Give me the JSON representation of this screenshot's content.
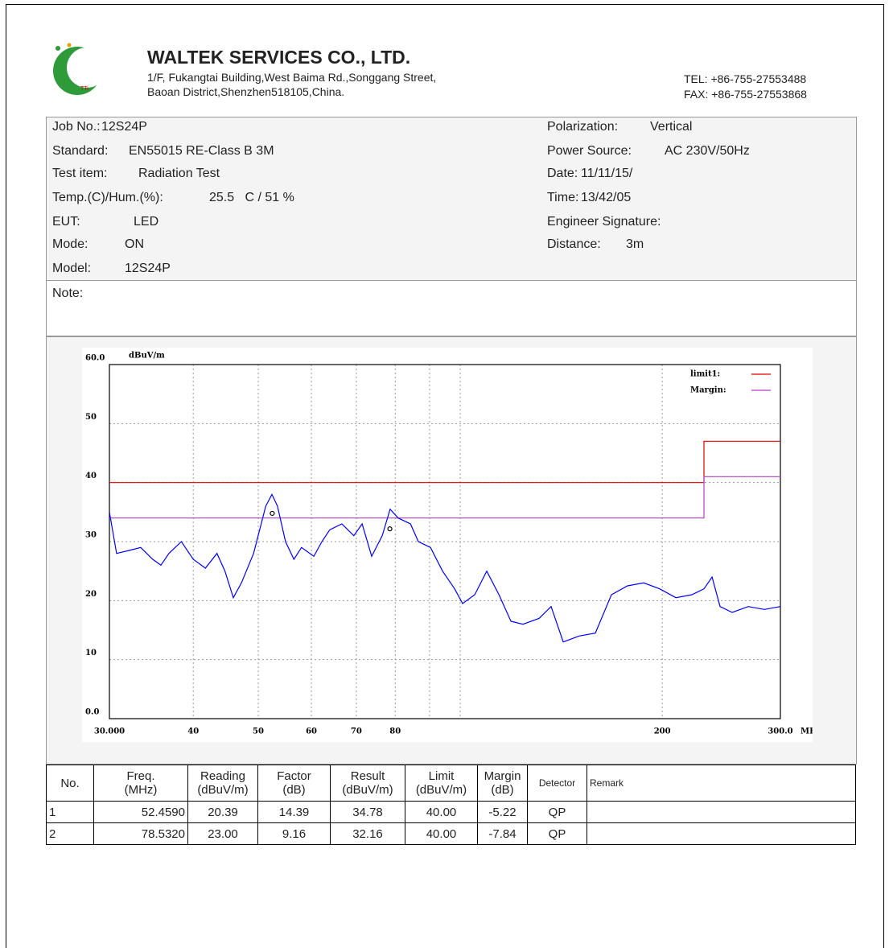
{
  "header": {
    "company": "WALTEK SERVICES CO., LTD.",
    "address_line1": "1/F, Fukangtai Building,West Baima Rd.,Songgang Street,",
    "address_line2": "Baoan District,Shenzhen518105,China.",
    "tel": "TEL: +86-755-27553488",
    "fax": "FAX: +86-755-27553868"
  },
  "info": {
    "left": [
      {
        "label": "Job No.:",
        "value": "12S24P"
      },
      {
        "label": "Standard:",
        "value": "EN55015 RE-Class B 3M"
      },
      {
        "label": "Test item:",
        "value": "Radiation Test"
      },
      {
        "label": "Temp.(C)/Hum.(%):",
        "value": "25.5   C / 51 %"
      },
      {
        "label": "EUT:",
        "value": "LED"
      },
      {
        "label": "Mode:",
        "value": "ON"
      },
      {
        "label": "Model:",
        "value": "12S24P"
      }
    ],
    "right": [
      {
        "label": "Polarization:",
        "value": "Vertical"
      },
      {
        "label": "Power Source:",
        "value": "AC 230V/50Hz"
      },
      {
        "label": "Date:",
        "value": "11/11/15/"
      },
      {
        "label": "Time:",
        "value": "13/42/05"
      },
      {
        "label": "Engineer Signature:"
      },
      {
        "label": "Distance:",
        "value": "3m"
      }
    ],
    "note": "Note:"
  },
  "chart_data": {
    "type": "line",
    "y_label": "dBuV/m",
    "x_label": "MHz",
    "xscale": "log",
    "xlim": [
      30,
      300
    ],
    "xticks": [
      {
        "value": 30,
        "label": "30.000"
      },
      40,
      50,
      60,
      70,
      80,
      200,
      {
        "value": 300,
        "label": "300.0"
      }
    ],
    "xminor": [
      90,
      100
    ],
    "ylim": [
      0,
      60
    ],
    "yticks": [
      {
        "value": 0,
        "label": "0.0"
      },
      10,
      20,
      30,
      40,
      50,
      {
        "value": 60,
        "label": "60.0"
      }
    ],
    "grid": true,
    "legend": "upper right",
    "series": [
      {
        "name": "limit1:",
        "color": "#e00000",
        "x": [
          30,
          230.8,
          230.8,
          300
        ],
        "values": [
          40,
          40,
          47,
          47
        ]
      },
      {
        "name": "Margin:",
        "color": "#b040c0",
        "x": [
          30,
          230.8,
          230.8,
          300
        ],
        "values": [
          34,
          34,
          41,
          41
        ]
      },
      {
        "color": "#0000ff",
        "x": [
          30,
          30.75,
          32.1,
          33.4,
          34.8,
          35.8,
          36.8,
          38.4,
          40.0,
          41.7,
          43.4,
          44.6,
          45.9,
          47.2,
          49.2,
          51.3,
          52.4,
          53.4,
          54.9,
          56.5,
          58.0,
          60.5,
          62.2,
          63.9,
          66.6,
          69.4,
          71.4,
          73.8,
          76.5,
          78.6,
          80.8,
          84.3,
          86.6,
          90.3,
          94.1,
          98.1,
          100.8,
          105.1,
          109.5,
          114.2,
          119.0,
          124.0,
          131.1,
          136.6,
          142.4,
          150.4,
          159.0,
          168.0,
          177.5,
          187.6,
          198.3,
          209.6,
          221.4,
          230.8,
          237.3,
          243.9,
          254.3,
          268.6,
          283.9,
          300
        ],
        "values": [
          35,
          28,
          28.5,
          29,
          27,
          26,
          28,
          30,
          27,
          25.5,
          28,
          25,
          20.5,
          23,
          28,
          36,
          38,
          36,
          30,
          27,
          29,
          27.5,
          30,
          32,
          33,
          31,
          33,
          27.5,
          31,
          35.5,
          34,
          33,
          30,
          29,
          25,
          22,
          19.5,
          21,
          25,
          21,
          16.5,
          16,
          17,
          19,
          13,
          14,
          14.5,
          21,
          22.5,
          23,
          22,
          20.5,
          21,
          22,
          24,
          19,
          18,
          19,
          18.5,
          19
        ]
      }
    ],
    "markers": {
      "x": [
        52.459,
        78.532
      ],
      "values": [
        34.78,
        32.16
      ]
    }
  },
  "table": {
    "headers": [
      [
        "No."
      ],
      [
        "Freq.",
        "(MHz)"
      ],
      [
        "Reading",
        "(dBuV/m)"
      ],
      [
        "Factor",
        "(dB)"
      ],
      [
        "Result",
        "(dBuV/m)"
      ],
      [
        "Limit",
        "(dBuV/m)"
      ],
      [
        "Margin",
        "(dB)"
      ],
      [
        "Detector"
      ],
      [
        "Remark"
      ]
    ],
    "rows": [
      [
        "1",
        "52.4590",
        "20.39",
        "14.39",
        "34.78",
        "40.00",
        "-5.22",
        "QP"
      ],
      [
        "2",
        "78.5320",
        "23.00",
        "9.16",
        "32.16",
        "40.00",
        "-7.84",
        "QP"
      ]
    ]
  }
}
